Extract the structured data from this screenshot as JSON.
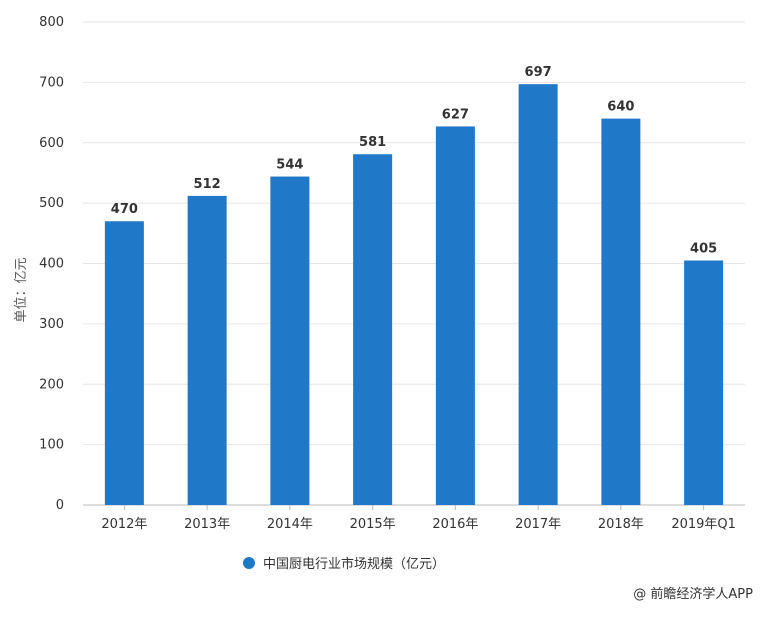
{
  "chart_data": {
    "type": "bar",
    "categories": [
      "2012年",
      "2013年",
      "2014年",
      "2015年",
      "2016年",
      "2017年",
      "2018年",
      "2019年Q1"
    ],
    "series": [
      {
        "name": "中国厨电行业市场规模（亿元）",
        "values": [
          470,
          512,
          544,
          581,
          627,
          697,
          640,
          405
        ]
      }
    ],
    "ylabel": "单位：亿元",
    "ylim": [
      0,
      800
    ],
    "yticks": [
      0,
      100,
      200,
      300,
      400,
      500,
      600,
      700,
      800
    ],
    "grid": true,
    "legend_position": "bottom-center",
    "bar_color": "#1f78c8",
    "grid_color": "#e6e6e6"
  },
  "source": "@ 前瞻经济学人APP"
}
